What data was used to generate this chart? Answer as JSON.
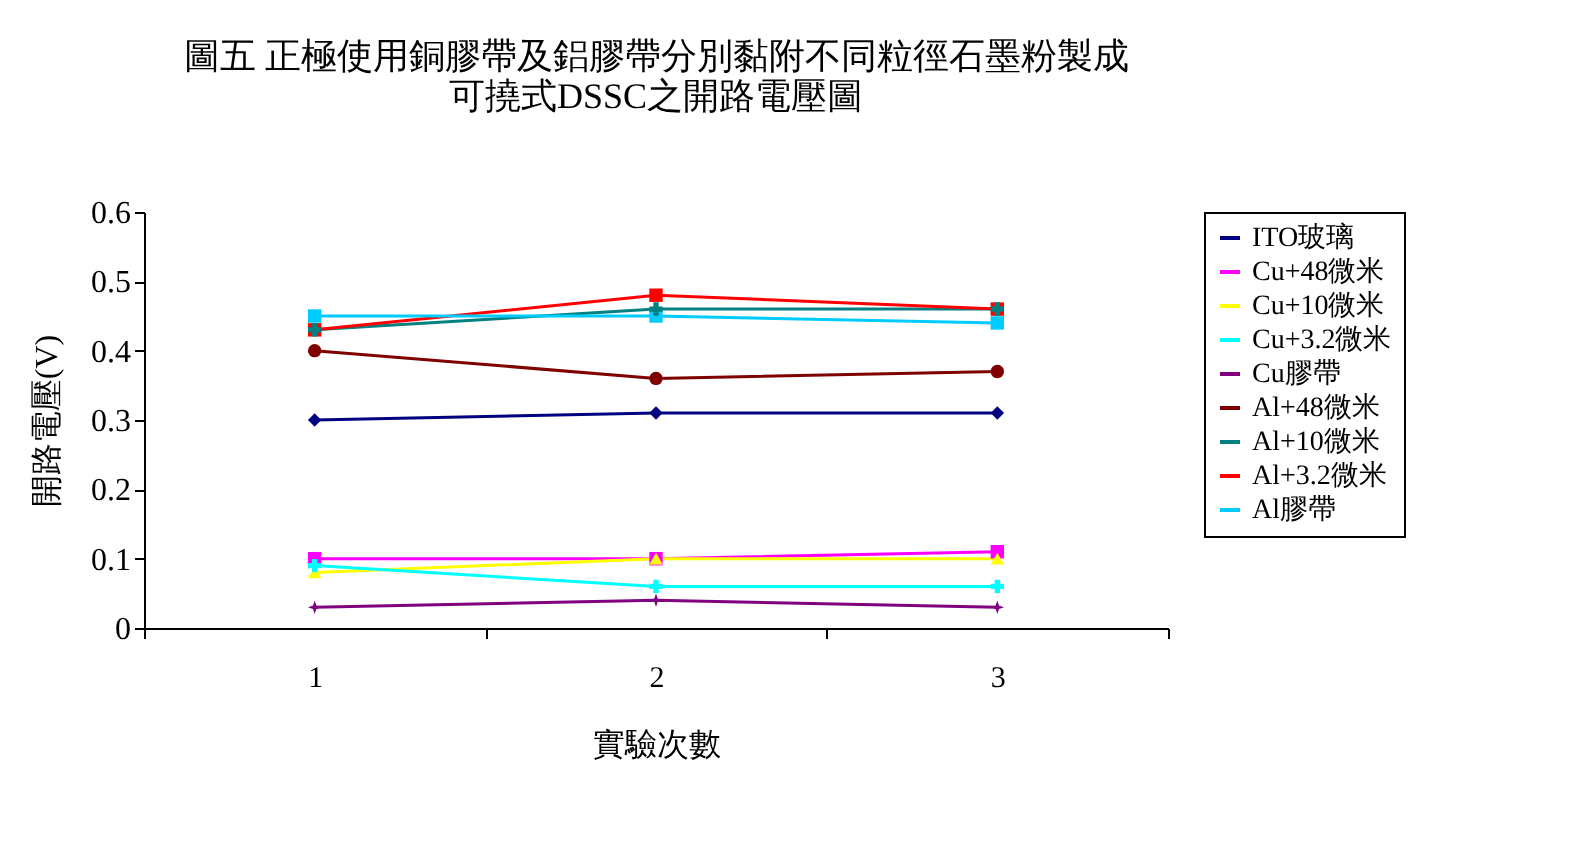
{
  "chart_data": {
    "type": "line",
    "title": [
      "圖五  正極使用銅膠帶及鋁膠帶分別黏附不同粒徑石墨粉製成",
      "可撓式DSSC之開路電壓圖"
    ],
    "xlabel": "實驗次數",
    "ylabel": "開路電壓(V)",
    "categories": [
      "1",
      "2",
      "3"
    ],
    "ylim": [
      0,
      0.6
    ],
    "yticks": [
      0,
      0.1,
      0.2,
      0.3,
      0.4,
      0.5,
      0.6
    ],
    "grid": false,
    "legend": "right",
    "series": [
      {
        "name": "ITO玻璃",
        "color": "#000080",
        "marker": "diamond",
        "values": [
          0.3,
          0.31,
          0.31
        ]
      },
      {
        "name": "Cu+48微米",
        "color": "#ff00ff",
        "marker": "square",
        "values": [
          0.1,
          0.1,
          0.11
        ]
      },
      {
        "name": "Cu+10微米",
        "color": "#ffff00",
        "marker": "triangle",
        "values": [
          0.08,
          0.1,
          0.1
        ]
      },
      {
        "name": "Cu+3.2微米",
        "color": "#00ffff",
        "marker": "cross",
        "values": [
          0.09,
          0.06,
          0.06
        ]
      },
      {
        "name": "Cu膠帶",
        "color": "#800080",
        "marker": "star",
        "values": [
          0.03,
          0.04,
          0.03
        ]
      },
      {
        "name": "Al+48微米",
        "color": "#800000",
        "marker": "circle",
        "values": [
          0.4,
          0.36,
          0.37
        ]
      },
      {
        "name": "Al+10微米",
        "color": "#008080",
        "marker": "cross",
        "values": [
          0.43,
          0.46,
          0.46
        ]
      },
      {
        "name": "Al+3.2微米",
        "color": "#ff0000",
        "marker": "square",
        "values": [
          0.43,
          0.48,
          0.46
        ]
      },
      {
        "name": "Al膠帶",
        "color": "#00ccff",
        "marker": "square",
        "values": [
          0.45,
          0.45,
          0.44
        ]
      }
    ]
  }
}
